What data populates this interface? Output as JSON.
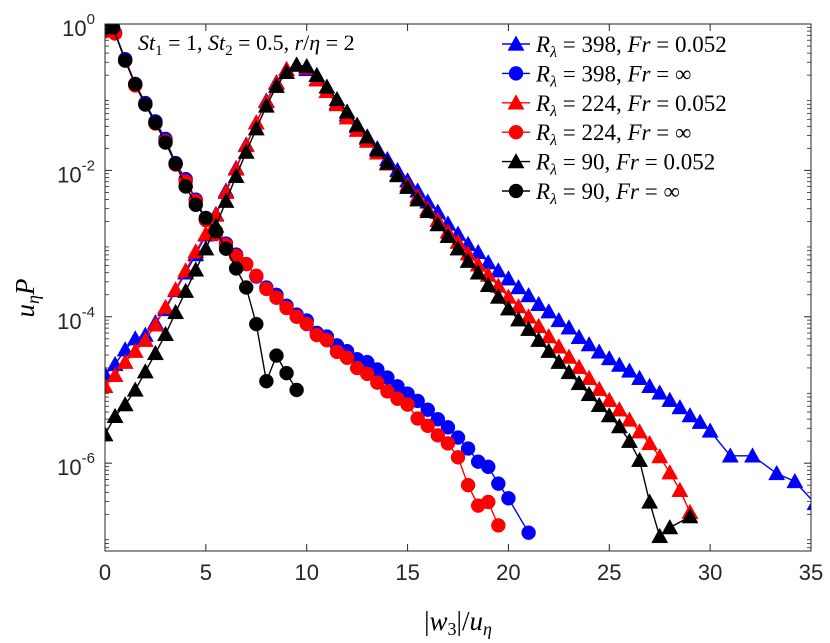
{
  "chart_data": {
    "type": "line",
    "yscale": "log",
    "xlim": [
      0,
      35
    ],
    "ylim_exp": [
      -7.2,
      0
    ],
    "xticks": [
      0,
      5,
      10,
      15,
      20,
      25,
      30,
      35
    ],
    "yticks": [
      {
        "exp": 0,
        "base": "10",
        "sup": "0"
      },
      {
        "exp": -2,
        "base": "10",
        "sup": "-2"
      },
      {
        "exp": -4,
        "base": "10",
        "sup": "-4"
      },
      {
        "exp": -6,
        "base": "10",
        "sup": "-6"
      }
    ],
    "xlabel": {
      "bar": "|",
      "w": "w",
      "sub3": "3",
      "slash": "/",
      "u": "u",
      "eta": "η"
    },
    "ylabel": {
      "u": "u",
      "eta": "η",
      "P": "P"
    },
    "annotation": {
      "st": "St",
      "one": "1",
      "eq1": " = 1, ",
      "two": "2",
      "eq2": " = 0.5, ",
      "r": "r",
      "slash": "/",
      "eta": "η",
      "eq3": " = 2"
    },
    "legend_placement": "top-right",
    "series": [
      {
        "name": "Rλ = 398, Fr = 0.052",
        "re": "398",
        "fr": "0.052",
        "color": "#0000ff",
        "marker": "triangle",
        "x": [
          0.0,
          0.5,
          1.0,
          1.5,
          2.0,
          2.5,
          3.0,
          3.5,
          4.0,
          4.5,
          5.0,
          5.5,
          6.0,
          6.5,
          7.0,
          7.5,
          8.0,
          8.5,
          9.0,
          9.5,
          10.0,
          10.5,
          11.0,
          11.5,
          12.0,
          12.5,
          13.0,
          13.5,
          14.0,
          14.5,
          15.0,
          15.5,
          16.0,
          16.5,
          17.0,
          17.5,
          18.0,
          18.5,
          19.0,
          19.5,
          20.0,
          20.5,
          21.0,
          21.5,
          22.0,
          22.5,
          23.0,
          23.5,
          24.0,
          24.5,
          25.0,
          25.5,
          26.0,
          26.5,
          27.0,
          27.5,
          28.0,
          28.5,
          29.0,
          29.5,
          30.0,
          31.0,
          32.1,
          33.3,
          34.2,
          35.2
        ],
        "y": [
          -4.79,
          -4.65,
          -4.45,
          -4.3,
          -4.25,
          -4.08,
          -3.9,
          -3.64,
          -3.4,
          -3.15,
          -2.88,
          -2.6,
          -2.28,
          -1.97,
          -1.65,
          -1.35,
          -1.05,
          -0.8,
          -0.62,
          -0.56,
          -0.62,
          -0.76,
          -0.92,
          -1.08,
          -1.24,
          -1.4,
          -1.56,
          -1.7,
          -1.85,
          -2.0,
          -2.14,
          -2.28,
          -2.43,
          -2.57,
          -2.73,
          -2.87,
          -3.01,
          -3.12,
          -3.26,
          -3.37,
          -3.48,
          -3.6,
          -3.71,
          -3.83,
          -3.93,
          -4.05,
          -4.15,
          -4.28,
          -4.38,
          -4.48,
          -4.57,
          -4.66,
          -4.74,
          -4.84,
          -4.95,
          -5.04,
          -5.14,
          -5.24,
          -5.35,
          -5.44,
          -5.56,
          -5.9,
          -5.9,
          -6.14,
          -6.25,
          -6.55
        ]
      },
      {
        "name": "Rλ = 398, Fr = ∞",
        "re": "398",
        "fr": "∞",
        "color": "#0000ff",
        "marker": "circle",
        "x": [
          0.0,
          0.5,
          1.0,
          1.5,
          2.0,
          2.5,
          3.0,
          3.5,
          4.0,
          4.5,
          5.0,
          5.5,
          6.0,
          6.5,
          7.0,
          7.5,
          8.0,
          8.5,
          9.0,
          9.5,
          10.0,
          10.5,
          11.0,
          11.5,
          12.0,
          12.5,
          13.0,
          13.5,
          14.0,
          14.5,
          15.0,
          15.5,
          16.0,
          16.5,
          17.0,
          17.5,
          18.0,
          18.5,
          19.0,
          19.5,
          20.0,
          21.0
        ],
        "y": [
          -0.08,
          -0.12,
          -0.48,
          -0.82,
          -1.08,
          -1.33,
          -1.57,
          -1.9,
          -2.12,
          -2.4,
          -2.67,
          -2.85,
          -3.0,
          -3.15,
          -3.28,
          -3.45,
          -3.6,
          -3.7,
          -3.85,
          -3.97,
          -4.05,
          -4.22,
          -4.27,
          -4.39,
          -4.47,
          -4.58,
          -4.62,
          -4.72,
          -4.83,
          -4.95,
          -5.05,
          -5.15,
          -5.27,
          -5.4,
          -5.51,
          -5.65,
          -5.8,
          -5.98,
          -6.05,
          -6.28,
          -6.48,
          -6.95
        ]
      },
      {
        "name": "Rλ = 224, Fr = 0.052",
        "re": "224",
        "fr": "0.052",
        "color": "#ff0000",
        "marker": "triangle",
        "x": [
          0.0,
          0.5,
          1.0,
          1.5,
          2.0,
          2.5,
          3.0,
          3.5,
          4.0,
          4.5,
          5.0,
          5.5,
          6.0,
          6.5,
          7.0,
          7.5,
          8.0,
          8.5,
          9.0,
          9.5,
          10.0,
          10.5,
          11.0,
          11.5,
          12.0,
          12.5,
          13.0,
          13.5,
          14.0,
          14.5,
          15.0,
          15.5,
          16.0,
          16.5,
          17.0,
          17.5,
          18.0,
          18.5,
          19.0,
          19.5,
          20.0,
          20.5,
          21.0,
          21.5,
          22.0,
          22.5,
          23.0,
          23.5,
          24.0,
          24.5,
          25.0,
          25.5,
          26.0,
          26.5,
          27.0,
          27.5,
          28.0,
          28.5,
          29.0
        ],
        "y": [
          -4.95,
          -4.8,
          -4.62,
          -4.47,
          -4.32,
          -4.11,
          -3.87,
          -3.63,
          -3.37,
          -3.11,
          -2.87,
          -2.61,
          -2.3,
          -1.98,
          -1.66,
          -1.35,
          -1.06,
          -0.81,
          -0.62,
          -0.56,
          -0.6,
          -0.76,
          -0.92,
          -1.1,
          -1.28,
          -1.45,
          -1.6,
          -1.76,
          -1.91,
          -2.06,
          -2.2,
          -2.36,
          -2.53,
          -2.68,
          -2.84,
          -2.98,
          -3.14,
          -3.29,
          -3.43,
          -3.58,
          -3.73,
          -3.86,
          -4.0,
          -4.13,
          -4.27,
          -4.41,
          -4.55,
          -4.69,
          -4.84,
          -4.99,
          -5.14,
          -5.27,
          -5.41,
          -5.57,
          -5.73,
          -5.91,
          -6.13,
          -6.37,
          -6.67
        ]
      },
      {
        "name": "Rλ = 224, Fr = ∞",
        "re": "224",
        "fr": "∞",
        "color": "#ff0000",
        "marker": "circle",
        "x": [
          0.0,
          0.5,
          1.0,
          1.5,
          2.0,
          2.5,
          3.0,
          3.5,
          4.0,
          4.5,
          5.0,
          5.5,
          6.0,
          6.5,
          7.0,
          7.5,
          8.0,
          8.5,
          9.0,
          9.5,
          10.0,
          10.5,
          11.0,
          11.5,
          12.0,
          12.5,
          13.0,
          13.5,
          14.0,
          14.5,
          15.0,
          15.5,
          16.0,
          16.5,
          17.0,
          17.5,
          18.0,
          18.5,
          19.0,
          19.5
        ],
        "y": [
          -0.1,
          -0.13,
          -0.5,
          -0.84,
          -1.1,
          -1.36,
          -1.6,
          -1.92,
          -2.15,
          -2.42,
          -2.68,
          -2.87,
          -3.02,
          -3.17,
          -3.28,
          -3.44,
          -3.62,
          -3.74,
          -3.88,
          -4.0,
          -4.1,
          -4.25,
          -4.32,
          -4.48,
          -4.56,
          -4.7,
          -4.78,
          -4.9,
          -5.02,
          -5.12,
          -5.2,
          -5.39,
          -5.49,
          -5.62,
          -5.73,
          -5.92,
          -6.3,
          -6.58,
          -6.53,
          -6.85
        ]
      },
      {
        "name": "Rλ = 90, Fr = 0.052",
        "re": "90",
        "fr": "0.052",
        "color": "#000000",
        "marker": "triangle",
        "x": [
          0.0,
          0.5,
          1.0,
          1.5,
          2.0,
          2.5,
          3.0,
          3.5,
          4.0,
          4.5,
          5.0,
          5.5,
          6.0,
          6.5,
          7.0,
          7.5,
          8.0,
          8.5,
          9.0,
          9.5,
          10.0,
          10.5,
          11.0,
          11.5,
          12.0,
          12.5,
          13.0,
          13.5,
          14.0,
          14.5,
          15.0,
          15.5,
          16.0,
          16.5,
          17.0,
          17.5,
          18.0,
          18.5,
          19.0,
          19.5,
          20.0,
          20.5,
          21.0,
          21.5,
          22.0,
          22.5,
          23.0,
          23.5,
          24.0,
          24.5,
          25.0,
          25.5,
          26.0,
          26.5,
          27.0,
          27.5,
          28.0,
          29.0
        ],
        "y": [
          -5.61,
          -5.36,
          -5.2,
          -5.0,
          -4.75,
          -4.5,
          -4.24,
          -3.94,
          -3.65,
          -3.36,
          -3.07,
          -2.76,
          -2.42,
          -2.08,
          -1.75,
          -1.43,
          -1.12,
          -0.85,
          -0.66,
          -0.56,
          -0.58,
          -0.7,
          -0.86,
          -1.03,
          -1.2,
          -1.38,
          -1.54,
          -1.72,
          -1.9,
          -2.07,
          -2.23,
          -2.4,
          -2.56,
          -2.74,
          -2.9,
          -3.07,
          -3.24,
          -3.4,
          -3.57,
          -3.73,
          -3.89,
          -4.04,
          -4.17,
          -4.32,
          -4.47,
          -4.62,
          -4.76,
          -4.91,
          -5.06,
          -5.21,
          -5.35,
          -5.5,
          -5.7,
          -5.96,
          -6.53,
          -7.0,
          -6.88,
          -6.73
        ]
      },
      {
        "name": "Rλ = 90, Fr = ∞",
        "re": "90",
        "fr": "∞",
        "color": "#000000",
        "marker": "circle",
        "x": [
          0.0,
          0.4,
          1.0,
          1.5,
          2.0,
          2.5,
          3.0,
          3.5,
          4.0,
          4.5,
          5.0,
          5.5,
          6.0,
          6.5,
          7.0,
          7.5,
          8.0,
          8.5,
          9.0,
          9.5
        ],
        "y": [
          -0.05,
          -0.05,
          -0.5,
          -0.82,
          -1.1,
          -1.35,
          -1.62,
          -1.91,
          -2.22,
          -2.47,
          -2.65,
          -2.83,
          -3.07,
          -3.34,
          -3.6,
          -4.1,
          -4.88,
          -4.53,
          -4.77,
          -5.0
        ]
      }
    ]
  }
}
